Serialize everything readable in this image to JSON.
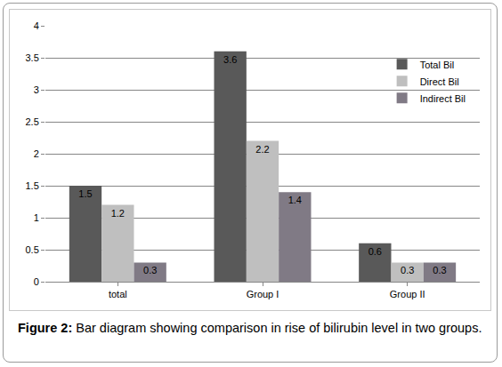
{
  "chart_data": {
    "type": "bar",
    "title": "Figure 2: Bar diagram showing comparison in rise of bilirubin level in two groups.",
    "categories": [
      "total",
      "Group I",
      "Group II"
    ],
    "series": [
      {
        "name": "Total Bil",
        "color": "#595959",
        "values": [
          1.5,
          3.6,
          0.6
        ]
      },
      {
        "name": "Direct Bil",
        "color": "#bfbfbf",
        "values": [
          1.2,
          2.2,
          0.3
        ]
      },
      {
        "name": "Indirect Bil",
        "color": "#807a85",
        "values": [
          0.3,
          1.4,
          0.3
        ]
      }
    ],
    "ylim": [
      0,
      4
    ],
    "yticks": [
      0,
      0.5,
      1,
      1.5,
      2,
      2.5,
      3,
      3.5,
      4
    ],
    "grid": true,
    "legend": "upper right",
    "data_labels": true
  }
}
